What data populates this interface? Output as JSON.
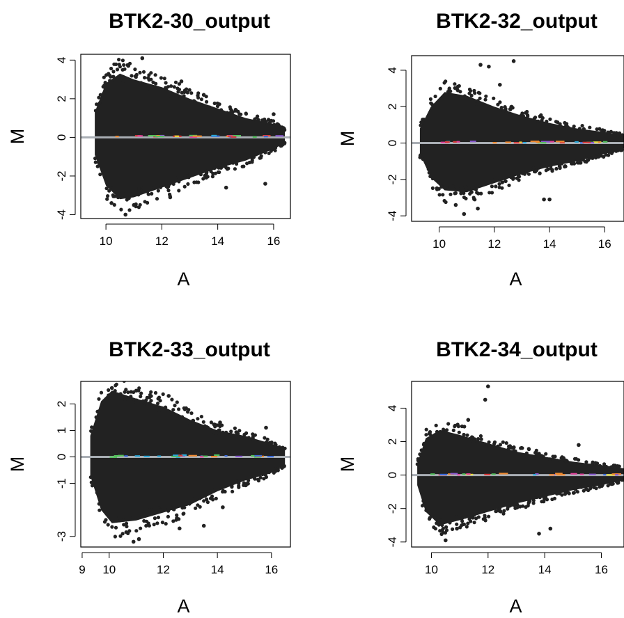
{
  "chart_data": [
    {
      "type": "scatter",
      "title": "BTK2-30_output",
      "xlabel": "A",
      "ylabel": "M",
      "xlim": [
        9.1,
        16.6
      ],
      "ylim": [
        -4.2,
        4.3
      ],
      "x_ticks": [
        10,
        12,
        14,
        16
      ],
      "y_ticks": [
        -4,
        -2,
        0,
        2,
        4
      ],
      "reference_line_y": 0,
      "mean_line_y": 0.05,
      "point_color": "#222222",
      "reference_line_color": "#a9aeb4",
      "envelope": [
        {
          "x": 9.6,
          "y_max": 1.3,
          "y_min": -0.9
        },
        {
          "x": 10.0,
          "y_max": 2.8,
          "y_min": -2.5
        },
        {
          "x": 10.5,
          "y_max": 3.3,
          "y_min": -3.2
        },
        {
          "x": 11.0,
          "y_max": 3.0,
          "y_min": -3.1
        },
        {
          "x": 12.0,
          "y_max": 2.6,
          "y_min": -2.6
        },
        {
          "x": 13.0,
          "y_max": 2.0,
          "y_min": -2.1
        },
        {
          "x": 14.0,
          "y_max": 1.5,
          "y_min": -1.6
        },
        {
          "x": 15.0,
          "y_max": 1.0,
          "y_min": -1.2
        },
        {
          "x": 16.0,
          "y_max": 0.7,
          "y_min": -0.6
        },
        {
          "x": 16.4,
          "y_max": 0.4,
          "y_min": -0.3
        }
      ],
      "outliers": [
        {
          "x": 11.3,
          "y": 4.1
        },
        {
          "x": 10.8,
          "y": 3.7
        },
        {
          "x": 12.7,
          "y": 2.9
        },
        {
          "x": 13.5,
          "y": 2.2
        },
        {
          "x": 16.0,
          "y": 1.2
        },
        {
          "x": 10.7,
          "y": -4.0
        },
        {
          "x": 11.0,
          "y": -3.5
        },
        {
          "x": 14.3,
          "y": -2.6
        },
        {
          "x": 15.7,
          "y": -2.4
        },
        {
          "x": 12.3,
          "y": -3.1
        },
        {
          "x": 10.2,
          "y": -3.4
        }
      ]
    },
    {
      "type": "scatter",
      "title": "BTK2-32_output",
      "xlabel": "A",
      "ylabel": "M",
      "xlim": [
        9.0,
        16.7
      ],
      "ylim": [
        -4.3,
        4.8
      ],
      "x_ticks": [
        10,
        12,
        14,
        16
      ],
      "y_ticks": [
        -4,
        -2,
        0,
        2,
        4
      ],
      "reference_line_y": 0,
      "mean_line_y": 0.05,
      "point_color": "#222222",
      "reference_line_color": "#a9aeb4",
      "envelope": [
        {
          "x": 9.3,
          "y_max": 0.8,
          "y_min": -0.6
        },
        {
          "x": 9.7,
          "y_max": 2.0,
          "y_min": -1.9
        },
        {
          "x": 10.2,
          "y_max": 2.8,
          "y_min": -2.6
        },
        {
          "x": 11.0,
          "y_max": 2.6,
          "y_min": -2.7
        },
        {
          "x": 12.0,
          "y_max": 2.0,
          "y_min": -2.2
        },
        {
          "x": 13.0,
          "y_max": 1.5,
          "y_min": -1.7
        },
        {
          "x": 14.0,
          "y_max": 1.1,
          "y_min": -1.3
        },
        {
          "x": 15.0,
          "y_max": 0.8,
          "y_min": -1.0
        },
        {
          "x": 16.0,
          "y_max": 0.6,
          "y_min": -0.6
        },
        {
          "x": 16.7,
          "y_max": 0.4,
          "y_min": -0.3
        }
      ],
      "outliers": [
        {
          "x": 12.7,
          "y": 4.5
        },
        {
          "x": 11.5,
          "y": 4.3
        },
        {
          "x": 11.8,
          "y": 4.2
        },
        {
          "x": 12.2,
          "y": 3.2
        },
        {
          "x": 10.9,
          "y": -3.9
        },
        {
          "x": 13.8,
          "y": -3.1
        },
        {
          "x": 14.0,
          "y": -3.1
        },
        {
          "x": 11.4,
          "y": -3.6
        },
        {
          "x": 10.6,
          "y": -3.4
        }
      ]
    },
    {
      "type": "scatter",
      "title": "BTK2-33_output",
      "xlabel": "A",
      "ylabel": "M",
      "xlim": [
        8.95,
        16.7
      ],
      "ylim": [
        -3.4,
        2.85
      ],
      "x_ticks": [
        9,
        10,
        12,
        14,
        16
      ],
      "y_ticks": [
        -3,
        -1,
        0,
        1,
        2
      ],
      "reference_line_y": 0,
      "mean_line_y": 0.03,
      "point_color": "#222222",
      "reference_line_color": "#a9aeb4",
      "envelope": [
        {
          "x": 9.3,
          "y_max": 0.8,
          "y_min": -0.7
        },
        {
          "x": 9.7,
          "y_max": 2.1,
          "y_min": -2.0
        },
        {
          "x": 10.1,
          "y_max": 2.5,
          "y_min": -2.5
        },
        {
          "x": 11.0,
          "y_max": 2.2,
          "y_min": -2.4
        },
        {
          "x": 12.0,
          "y_max": 1.9,
          "y_min": -2.1
        },
        {
          "x": 13.0,
          "y_max": 1.4,
          "y_min": -1.8
        },
        {
          "x": 14.0,
          "y_max": 1.0,
          "y_min": -1.3
        },
        {
          "x": 15.0,
          "y_max": 0.8,
          "y_min": -0.9
        },
        {
          "x": 16.0,
          "y_max": 0.5,
          "y_min": -0.6
        },
        {
          "x": 16.5,
          "y_max": 0.3,
          "y_min": -0.3
        }
      ],
      "outliers": [
        {
          "x": 10.1,
          "y": 2.6
        },
        {
          "x": 11.0,
          "y": 2.5
        },
        {
          "x": 12.2,
          "y": 2.3
        },
        {
          "x": 14.1,
          "y": 1.3
        },
        {
          "x": 15.8,
          "y": 1.1
        },
        {
          "x": 10.9,
          "y": -3.2
        },
        {
          "x": 11.1,
          "y": -3.1
        },
        {
          "x": 13.5,
          "y": -2.6
        },
        {
          "x": 14.2,
          "y": -1.9
        },
        {
          "x": 12.6,
          "y": -2.7
        }
      ]
    },
    {
      "type": "scatter",
      "title": "BTK2-34_output",
      "xlabel": "A",
      "ylabel": "M",
      "xlim": [
        9.3,
        16.8
      ],
      "ylim": [
        -4.3,
        5.6
      ],
      "x_ticks": [
        10,
        12,
        14,
        16
      ],
      "y_ticks": [
        -4,
        -2,
        0,
        2,
        4
      ],
      "reference_line_y": 0,
      "mean_line_y": 0.05,
      "point_color": "#222222",
      "reference_line_color": "#a9aeb4",
      "envelope": [
        {
          "x": 9.5,
          "y_max": 0.7,
          "y_min": -0.6
        },
        {
          "x": 9.8,
          "y_max": 2.2,
          "y_min": -2.2
        },
        {
          "x": 10.3,
          "y_max": 2.7,
          "y_min": -3.0
        },
        {
          "x": 11.0,
          "y_max": 2.4,
          "y_min": -2.7
        },
        {
          "x": 12.0,
          "y_max": 1.9,
          "y_min": -2.2
        },
        {
          "x": 13.0,
          "y_max": 1.4,
          "y_min": -1.7
        },
        {
          "x": 14.0,
          "y_max": 1.1,
          "y_min": -1.3
        },
        {
          "x": 15.0,
          "y_max": 0.8,
          "y_min": -0.9
        },
        {
          "x": 16.0,
          "y_max": 0.6,
          "y_min": -0.6
        },
        {
          "x": 16.8,
          "y_max": 0.4,
          "y_min": -0.3
        }
      ],
      "outliers": [
        {
          "x": 12.0,
          "y": 5.3
        },
        {
          "x": 11.9,
          "y": 4.5
        },
        {
          "x": 11.3,
          "y": 3.3
        },
        {
          "x": 15.2,
          "y": 1.8
        },
        {
          "x": 10.5,
          "y": -3.9
        },
        {
          "x": 13.8,
          "y": -3.5
        },
        {
          "x": 14.2,
          "y": -3.2
        },
        {
          "x": 10.9,
          "y": -3.2
        }
      ]
    }
  ]
}
